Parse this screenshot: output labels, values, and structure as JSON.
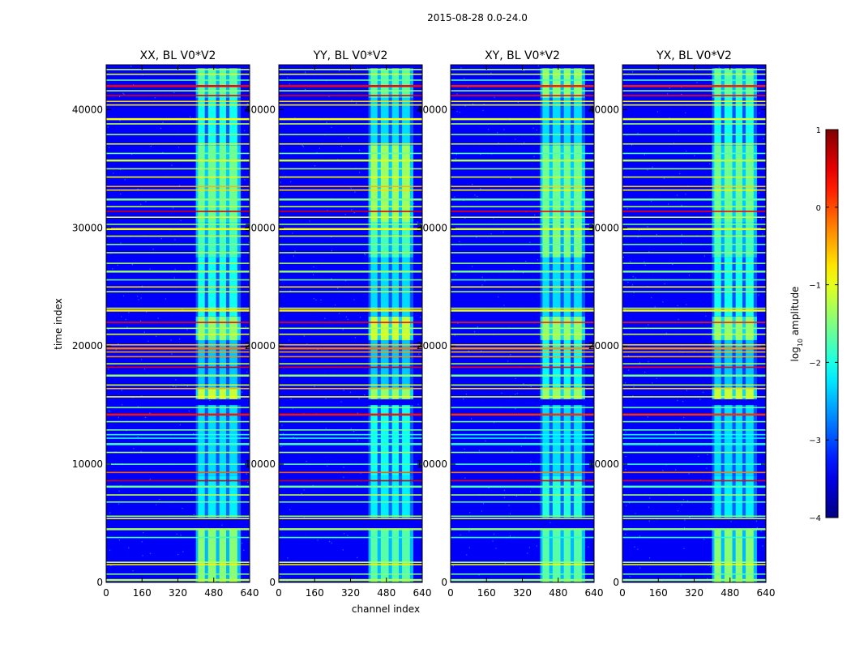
{
  "chart_data": {
    "type": "heatmap",
    "suptitle": "2015-08-28 0.0-24.0",
    "xlabel": "channel index",
    "ylabel": "time index",
    "xlim": [
      0,
      640
    ],
    "ylim": [
      0,
      43800
    ],
    "xticks": [
      0,
      160,
      320,
      480,
      640
    ],
    "yticks": [
      0,
      10000,
      20000,
      30000,
      40000
    ],
    "xtick_labels": [
      "0",
      "160",
      "320",
      "480",
      "640"
    ],
    "ytick_labels": [
      "0",
      "10000",
      "20000",
      "30000",
      "40000"
    ],
    "colormap": "jet",
    "colorbar": {
      "label": "log10 amplitude",
      "label_main": "log",
      "label_sub": "10",
      "label_rest": " amplitude",
      "range": [
        -4,
        1
      ],
      "ticks": [
        1,
        0,
        -1,
        -2,
        -3,
        -4
      ],
      "tick_labels": [
        "1",
        "0",
        "−1",
        "−2",
        "−3",
        "−4"
      ]
    },
    "panels": [
      {
        "title": "XX, BL V0*V2",
        "pol": "XX"
      },
      {
        "title": "YY, BL V0*V2",
        "pol": "YY"
      },
      {
        "title": "XY, BL V0*V2",
        "pol": "XY"
      },
      {
        "title": "YX, BL V0*V2",
        "pol": "YX"
      }
    ],
    "background_level": -3.4,
    "rfi_channel_band": [
      400,
      600
    ],
    "rfi_channel_columns": [
      {
        "start": 410,
        "end": 440
      },
      {
        "start": 455,
        "end": 490
      },
      {
        "start": 505,
        "end": 535
      },
      {
        "start": 550,
        "end": 585
      }
    ],
    "rfi_band_segments": [
      {
        "from": 0,
        "to": 4500,
        "level": -1.7
      },
      {
        "from": 5500,
        "to": 9000,
        "level": -2.2
      },
      {
        "from": 9000,
        "to": 15000,
        "level": -2.3
      },
      {
        "from": 15500,
        "to": 16500,
        "level": -1.4
      },
      {
        "from": 16500,
        "to": 20500,
        "level": -2.4
      },
      {
        "from": 20500,
        "to": 22500,
        "level": -1.4
      },
      {
        "from": 22500,
        "to": 27500,
        "level": -2.3
      },
      {
        "from": 27500,
        "to": 30500,
        "level": -1.8
      },
      {
        "from": 30500,
        "to": 37000,
        "level": -1.6
      },
      {
        "from": 37000,
        "to": 41000,
        "level": -2.3
      },
      {
        "from": 41000,
        "to": 43500,
        "level": -1.7
      }
    ],
    "flagged_rows": [
      {
        "t": 200,
        "level": -1.2
      },
      {
        "t": 700,
        "level": -1.5
      },
      {
        "t": 1500,
        "level": -0.8
      },
      {
        "t": 1700,
        "level": -1.1
      },
      {
        "t": 3800,
        "level": -1.8
      },
      {
        "t": 4500,
        "level": -1.3
      },
      {
        "t": 5400,
        "level": -0.9
      },
      {
        "t": 5600,
        "level": -1.4
      },
      {
        "t": 6800,
        "level": -1.6
      },
      {
        "t": 7400,
        "level": -1.2
      },
      {
        "t": 8100,
        "level": -1.6
      },
      {
        "t": 8600,
        "level": 0.6
      },
      {
        "t": 9300,
        "level": -0.1
      },
      {
        "t": 10000,
        "level": -1.7
      },
      {
        "t": 11000,
        "level": -1.3
      },
      {
        "t": 11700,
        "level": -1.8
      },
      {
        "t": 12200,
        "level": -2.0
      },
      {
        "t": 12500,
        "level": -1.9
      },
      {
        "t": 12900,
        "level": -1.6
      },
      {
        "t": 13600,
        "level": -1.4
      },
      {
        "t": 14200,
        "level": 0.3
      },
      {
        "t": 14800,
        "level": -1.5
      },
      {
        "t": 15700,
        "level": -0.9
      },
      {
        "t": 16400,
        "level": -0.5
      },
      {
        "t": 16700,
        "level": -1.1
      },
      {
        "t": 17500,
        "level": -1.4
      },
      {
        "t": 18200,
        "level": 0.5
      },
      {
        "t": 18500,
        "level": -1.2
      },
      {
        "t": 19100,
        "level": -0.3
      },
      {
        "t": 19500,
        "level": -0.4
      },
      {
        "t": 19800,
        "level": -0.2
      },
      {
        "t": 20100,
        "level": -0.6
      },
      {
        "t": 21000,
        "level": -1.0
      },
      {
        "t": 21500,
        "level": -1.3
      },
      {
        "t": 22000,
        "level": 0.4
      },
      {
        "t": 23000,
        "level": -0.8
      },
      {
        "t": 23200,
        "level": -1.0
      },
      {
        "t": 24600,
        "level": -1.2
      },
      {
        "t": 25000,
        "level": -0.7
      },
      {
        "t": 25600,
        "level": -1.6
      },
      {
        "t": 26300,
        "level": -1.4
      },
      {
        "t": 27000,
        "level": -1.3
      },
      {
        "t": 27900,
        "level": -1.2
      },
      {
        "t": 28600,
        "level": -1.5
      },
      {
        "t": 29300,
        "level": -1.1
      },
      {
        "t": 29900,
        "level": -0.9
      },
      {
        "t": 30300,
        "level": -1.4
      },
      {
        "t": 30900,
        "level": -1.0
      },
      {
        "t": 31400,
        "level": 0.6
      },
      {
        "t": 31800,
        "level": -1.2
      },
      {
        "t": 32400,
        "level": -1.5
      },
      {
        "t": 33200,
        "level": -0.7
      },
      {
        "t": 33500,
        "level": -0.5
      },
      {
        "t": 34300,
        "level": -0.9
      },
      {
        "t": 35000,
        "level": -1.3
      },
      {
        "t": 35700,
        "level": -1.1
      },
      {
        "t": 36300,
        "level": -1.6
      },
      {
        "t": 37100,
        "level": -1.0
      },
      {
        "t": 37900,
        "level": -1.4
      },
      {
        "t": 38800,
        "level": -1.2
      },
      {
        "t": 39200,
        "level": -0.9
      },
      {
        "t": 40400,
        "level": -0.8
      },
      {
        "t": 40700,
        "level": -0.7
      },
      {
        "t": 41200,
        "level": 0.5
      },
      {
        "t": 41600,
        "level": -1.3
      },
      {
        "t": 42000,
        "level": 0.4
      },
      {
        "t": 42500,
        "level": -1.6
      },
      {
        "t": 43000,
        "level": -1.0
      },
      {
        "t": 43400,
        "level": -1.2
      }
    ]
  }
}
